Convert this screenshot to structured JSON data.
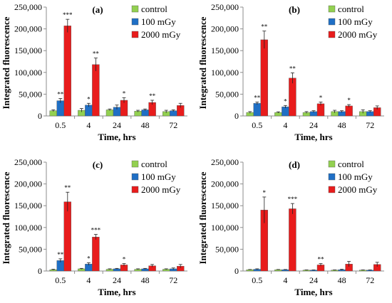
{
  "colors": {
    "control": "#92D050",
    "100 mGy": "#1F6FC5",
    "2000 mGy": "#E81C1C",
    "axis": "#8C8C8C",
    "text": "#000000"
  },
  "chart_data": [
    {
      "type": "bar",
      "panel_label": "(a)",
      "categories": [
        "0.5",
        "4",
        "24",
        "48",
        "72"
      ],
      "series": [
        {
          "name": "control",
          "values": [
            12000,
            13000,
            14000,
            11000,
            10000
          ],
          "errors": [
            2000,
            4000,
            2000,
            2000,
            3000
          ],
          "marks": [
            "",
            "",
            "",
            "",
            ""
          ]
        },
        {
          "name": "100 mGy",
          "values": [
            35000,
            25000,
            20000,
            14000,
            12000
          ],
          "errors": [
            5000,
            4000,
            5000,
            2000,
            2000
          ],
          "marks": [
            "**",
            "*",
            "",
            "",
            ""
          ]
        },
        {
          "name": "2000 mGy",
          "values": [
            207000,
            118000,
            36000,
            31000,
            24000
          ],
          "errors": [
            15000,
            15000,
            6000,
            5000,
            5000
          ],
          "marks": [
            "***",
            "**",
            "*",
            "**",
            ""
          ]
        }
      ],
      "xlabel": "Time, hrs",
      "ylabel": "Integrated fluorescence",
      "ylim": [
        0,
        250000
      ],
      "yticks": [
        "0",
        "50,000",
        "100,000",
        "150,000",
        "200,000",
        "250,000"
      ],
      "legend": "top-right"
    },
    {
      "type": "bar",
      "panel_label": "(b)",
      "categories": [
        "0.5",
        "4",
        "24",
        "48",
        "72"
      ],
      "series": [
        {
          "name": "control",
          "values": [
            8000,
            8000,
            8000,
            10000,
            10000
          ],
          "errors": [
            2000,
            1500,
            2000,
            3000,
            4000
          ],
          "marks": [
            "",
            "",
            "",
            "",
            ""
          ]
        },
        {
          "name": "100 mGy",
          "values": [
            29000,
            21000,
            10000,
            10000,
            10000
          ],
          "errors": [
            3000,
            3000,
            2000,
            2000,
            2000
          ],
          "marks": [
            "**",
            "*",
            "",
            "",
            ""
          ]
        },
        {
          "name": "2000 mGy",
          "values": [
            175000,
            87000,
            28000,
            23000,
            19000
          ],
          "errors": [
            20000,
            12000,
            4000,
            3000,
            4000
          ],
          "marks": [
            "**",
            "**",
            "*",
            "*",
            ""
          ]
        }
      ],
      "xlabel": "Time, hrs",
      "ylabel": "Integrated fluorescence",
      "ylim": [
        0,
        250000
      ],
      "yticks": [
        "0",
        "50,000",
        "100,000",
        "150,000",
        "200,000",
        "250,000"
      ],
      "legend": "top-right"
    },
    {
      "type": "bar",
      "panel_label": "(c)",
      "categories": [
        "0.5",
        "4",
        "24",
        "48",
        "72"
      ],
      "series": [
        {
          "name": "control",
          "values": [
            3000,
            5000,
            4000,
            4000,
            4000
          ],
          "errors": [
            1000,
            1000,
            1000,
            1000,
            1000
          ],
          "marks": [
            "",
            "",
            "",
            "",
            ""
          ]
        },
        {
          "name": "100 mGy",
          "values": [
            24000,
            16000,
            5000,
            5000,
            5000
          ],
          "errors": [
            4000,
            3000,
            1000,
            1000,
            2000
          ],
          "marks": [
            "**",
            "*",
            "",
            "",
            ""
          ]
        },
        {
          "name": "2000 mGy",
          "values": [
            159000,
            78000,
            14000,
            12000,
            11000
          ],
          "errors": [
            22000,
            6000,
            3000,
            3000,
            4000
          ],
          "marks": [
            "**",
            "***",
            "*",
            "",
            ""
          ]
        }
      ],
      "xlabel": "Time, hrs",
      "ylabel": "Integrated fluorescence",
      "ylim": [
        0,
        250000
      ],
      "yticks": [
        "0",
        "50,000",
        "100,000",
        "150,000",
        "200,000",
        "250,000"
      ],
      "legend": "top-right"
    },
    {
      "type": "bar",
      "panel_label": "(d)",
      "categories": [
        "0.5",
        "4",
        "24",
        "48",
        "72"
      ],
      "series": [
        {
          "name": "control",
          "values": [
            3000,
            3000,
            2000,
            2000,
            2000
          ],
          "errors": [
            500,
            500,
            500,
            500,
            500
          ],
          "marks": [
            "",
            "",
            "",
            "",
            ""
          ]
        },
        {
          "name": "100 mGy",
          "values": [
            4000,
            3000,
            2000,
            3000,
            2000
          ],
          "errors": [
            1000,
            500,
            500,
            1000,
            500
          ],
          "marks": [
            "",
            "",
            "",
            "",
            ""
          ]
        },
        {
          "name": "2000 mGy",
          "values": [
            140000,
            143000,
            14000,
            16000,
            15000
          ],
          "errors": [
            30000,
            12000,
            3000,
            6000,
            5000
          ],
          "marks": [
            "*",
            "***",
            "**",
            "",
            ""
          ]
        }
      ],
      "xlabel": "Time, hrs",
      "ylabel": "Integrated fluorescence",
      "ylim": [
        0,
        250000
      ],
      "yticks": [
        "0",
        "50,000",
        "100,000",
        "150,000",
        "200,000",
        "250,000"
      ],
      "legend": "top-right"
    }
  ]
}
